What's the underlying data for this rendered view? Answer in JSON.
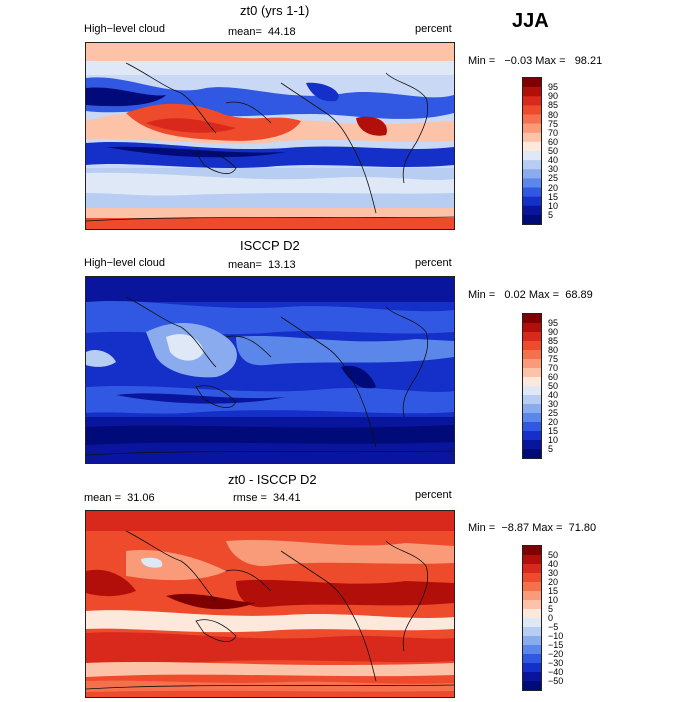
{
  "season": "JJA",
  "panels": [
    {
      "title": "zt0 (yrs 1-1)",
      "left_label": "High−level cloud",
      "mean_label": "mean=  44.18",
      "right_label": "percent",
      "minmax": "Min =   −0.03 Max =   98.21",
      "cbar_ticks": [
        "95",
        "90",
        "85",
        "80",
        "75",
        "70",
        "60",
        "50",
        "40",
        "30",
        "25",
        "20",
        "15",
        "10",
        "5"
      ],
      "cbar_colors": [
        "#7f0000",
        "#b30f0a",
        "#d8291c",
        "#ee4a2c",
        "#f5714d",
        "#f99a78",
        "#fcc3a8",
        "#fde8dc",
        "#dfe8f7",
        "#b8cdf2",
        "#8aacef",
        "#5c87ea",
        "#3158e2",
        "#1430c8",
        "#0a159e",
        "#000a78"
      ]
    },
    {
      "title": "ISCCP D2",
      "left_label": "High−level cloud",
      "mean_label": "mean=  13.13",
      "right_label": "percent",
      "minmax": "Min =   0.02 Max =  68.89",
      "cbar_ticks": [
        "95",
        "90",
        "85",
        "80",
        "75",
        "70",
        "60",
        "50",
        "40",
        "30",
        "25",
        "20",
        "15",
        "10",
        "5"
      ],
      "cbar_colors": [
        "#7f0000",
        "#b30f0a",
        "#d8291c",
        "#ee4a2c",
        "#f5714d",
        "#f99a78",
        "#fcc3a8",
        "#fde8dc",
        "#dfe8f7",
        "#b8cdf2",
        "#8aacef",
        "#5c87ea",
        "#3158e2",
        "#1430c8",
        "#0a159e",
        "#000a78"
      ]
    },
    {
      "title": "zt0 - ISCCP D2",
      "left_label": "mean =  31.06",
      "mean_label": "rmse =  34.41",
      "right_label": "percent",
      "minmax": "Min =  −8.87 Max =  71.80",
      "cbar_ticks": [
        "50",
        "40",
        "30",
        "20",
        "15",
        "10",
        "5",
        "0",
        "−5",
        "−10",
        "−15",
        "−20",
        "−30",
        "−40",
        "−50"
      ],
      "cbar_colors": [
        "#7f0000",
        "#b30f0a",
        "#d8291c",
        "#ee4a2c",
        "#f5714d",
        "#f99a78",
        "#fcc3a8",
        "#fde8dc",
        "#dfe8f7",
        "#b8cdf2",
        "#8aacef",
        "#5c87ea",
        "#3158e2",
        "#1430c8",
        "#0a159e",
        "#000a78"
      ]
    }
  ]
}
